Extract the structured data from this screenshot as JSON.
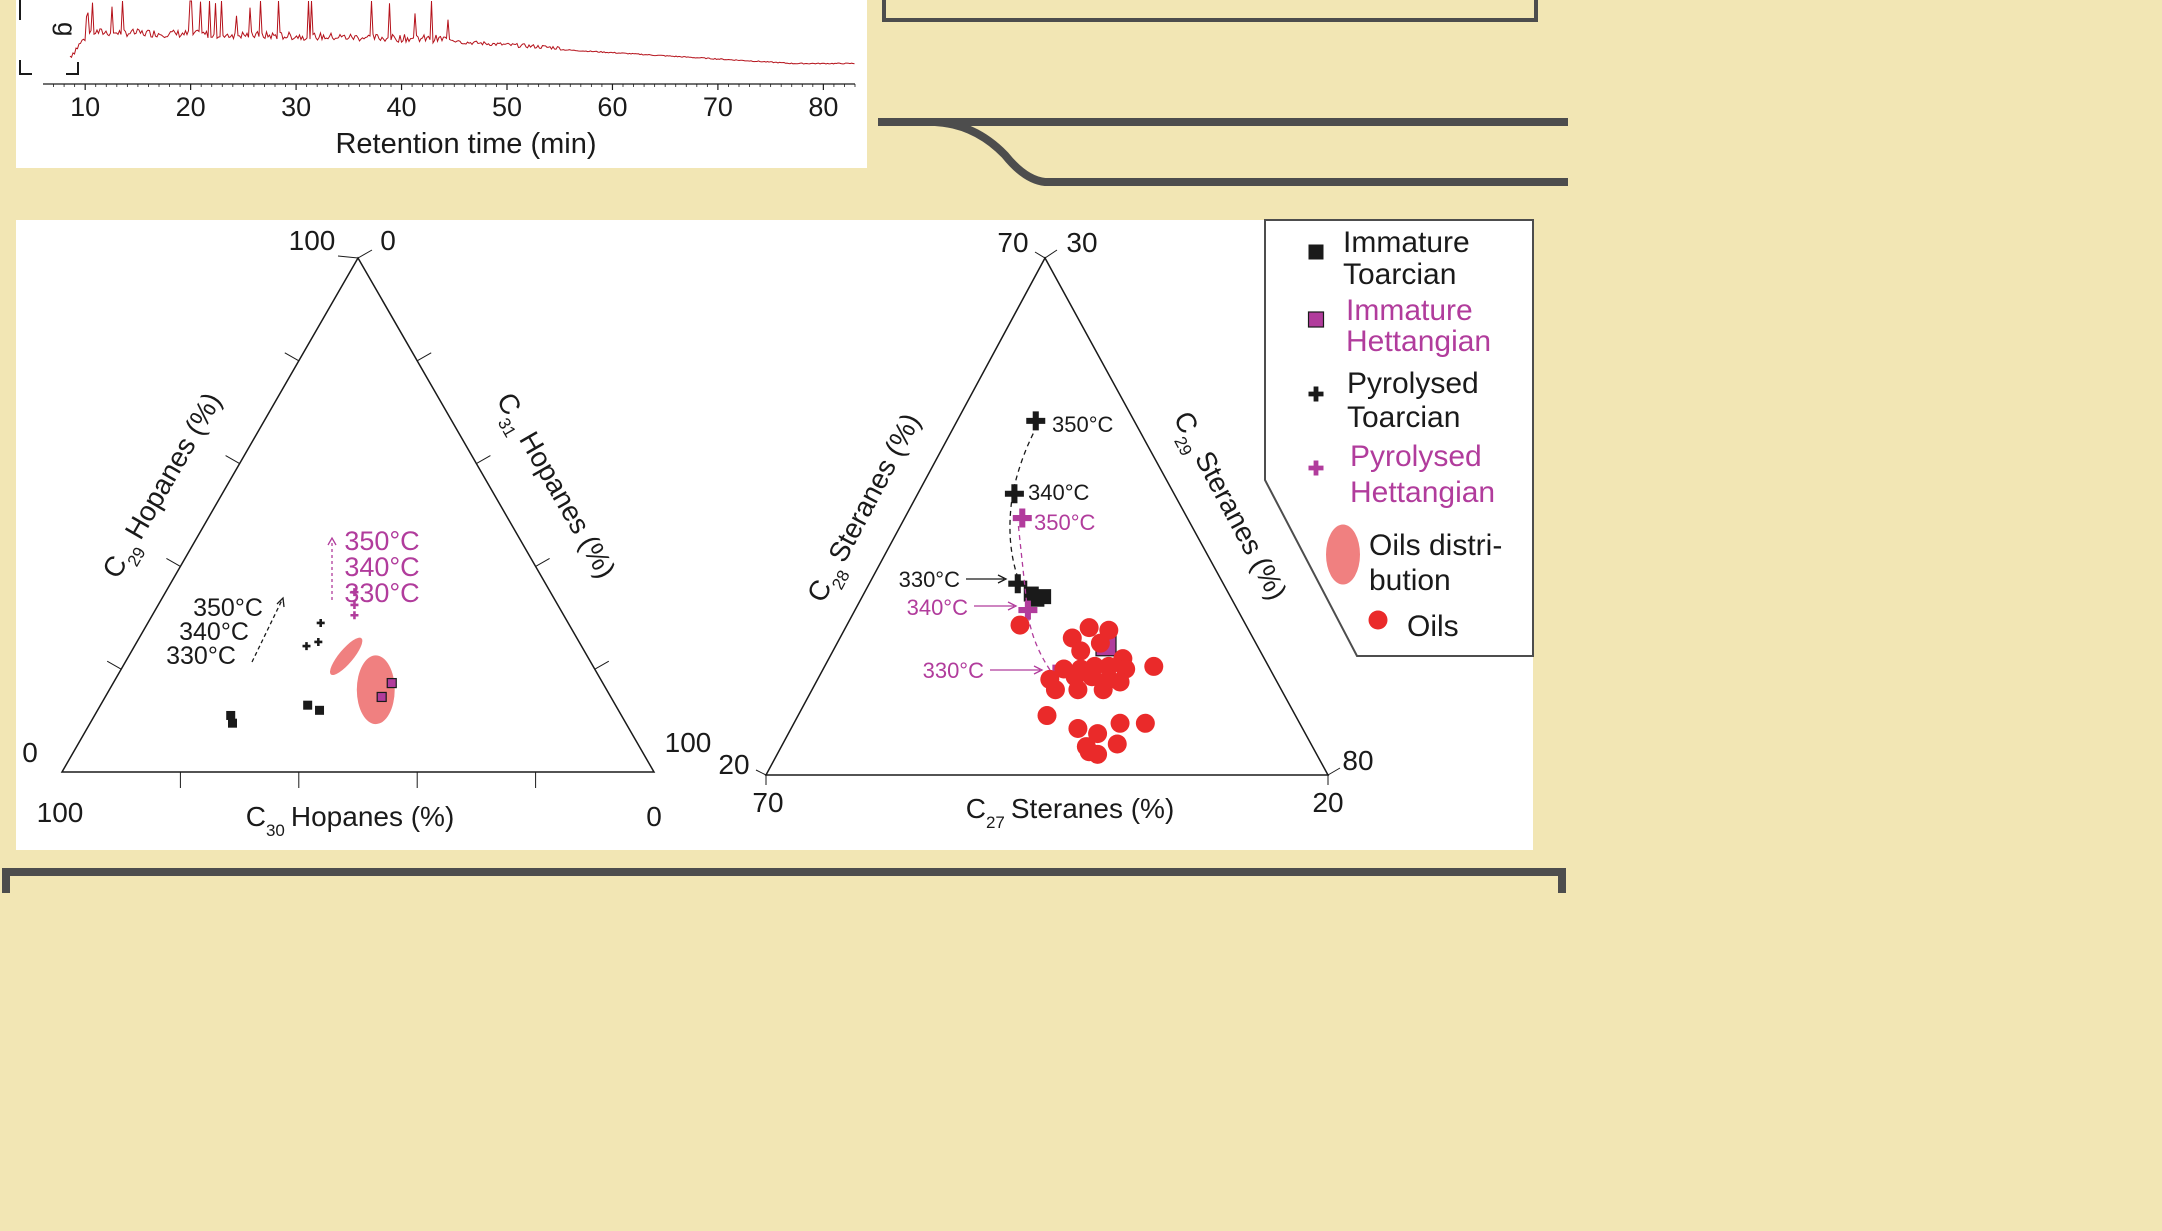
{
  "colors": {
    "background": "#f2e6b4",
    "panel": "#ffffff",
    "black": "#1a1a1a",
    "magenta": "#b13c9c",
    "oil_red": "#ea2a2a",
    "oil_ellipse": "#f08080",
    "chromatogram": "#b5121b",
    "frame": "#4d4d4d"
  },
  "chart_data": [
    {
      "type": "line",
      "xlabel": "Retention time (min)",
      "ylabel_fragment": "g",
      "x_ticks": [
        "10",
        "20",
        "30",
        "40",
        "50",
        "60",
        "70",
        "80"
      ],
      "xlim": [
        6,
        83
      ],
      "color": "chromatogram"
    },
    {
      "type": "ternary-scatter",
      "axis_bottom": {
        "label_main": "C",
        "label_sub": "30",
        "label_rest": "Hopanes (%)",
        "start": "100",
        "end": "0"
      },
      "axis_left": {
        "label_main": "C",
        "label_sub": "29",
        "label_rest": "Hopanes (%)",
        "bottom": "0",
        "top": "100"
      },
      "axis_right": {
        "label_main": "C",
        "label_sub": "31",
        "label_rest": "Hopanes (%)",
        "top": "0",
        "bottom": "100"
      },
      "series": [
        {
          "name": "Immature Toarcian",
          "marker": "square",
          "color": "black",
          "points": [
            [
              0.285,
              0.11
            ],
            [
              0.288,
              0.095
            ],
            [
              0.415,
              0.13
            ],
            [
              0.435,
              0.12
            ]
          ]
        },
        {
          "name": "Immature Hettangian",
          "marker": "square",
          "color": "magenta",
          "points": [
            [
              0.557,
              0.173
            ],
            [
              0.54,
              0.146
            ]
          ]
        },
        {
          "name": "Pyrolysed Toarcian",
          "marker": "plus",
          "color": "black",
          "points": [
            [
              0.437,
              0.29
            ],
            [
              0.413,
              0.245
            ],
            [
              0.433,
              0.253
            ]
          ]
        },
        {
          "name": "Pyrolysed Hettangian",
          "marker": "plus",
          "color": "magenta",
          "points": [
            [
              0.494,
              0.35
            ],
            [
              0.494,
              0.325
            ],
            [
              0.494,
              0.305
            ]
          ]
        }
      ],
      "oils_region": [
        {
          "cx": 0.48,
          "cy": 0.225,
          "rx": 0.04,
          "ry": 0.012,
          "rot": -50
        },
        {
          "cx": 0.53,
          "cy": 0.16,
          "rx": 0.032,
          "ry": 0.058,
          "rot": 0
        }
      ],
      "annotations_black": [
        "350°C",
        "340°C",
        "330°C"
      ],
      "annotations_magenta": [
        "350°C",
        "340°C",
        "330°C"
      ]
    },
    {
      "type": "ternary-scatter",
      "axis_bottom": {
        "label_main": "C",
        "label_sub": "27",
        "label_rest": "Steranes (%)",
        "start": "70",
        "end": "20"
      },
      "axis_left": {
        "label_main": "C",
        "label_sub": "28",
        "label_rest": "Steranes (%)",
        "bottom": "20",
        "top": "70"
      },
      "axis_right": {
        "label_main": "C",
        "label_sub": "29",
        "label_rest": "Steranes (%)",
        "top": "30",
        "bottom": "80"
      },
      "series": [
        {
          "name": "Immature Toarcian",
          "marker": "square",
          "color": "black",
          "points": [
            [
              0.472,
              0.35
            ],
            [
              0.482,
              0.34
            ],
            [
              0.494,
              0.345
            ]
          ]
        },
        {
          "name": "Immature Hettangian",
          "marker": "square",
          "color": "magenta",
          "points": [
            [
              0.605,
              0.25
            ]
          ]
        },
        {
          "name": "Pyrolysed Toarcian",
          "marker": "plus",
          "color": "black",
          "points": [
            [
              0.48,
              0.685
            ],
            [
              0.442,
              0.544
            ],
            [
              0.448,
              0.37
            ]
          ]
        },
        {
          "name": "Pyrolysed Hettangian",
          "marker": "plus",
          "color": "magenta",
          "points": [
            [
              0.456,
              0.497
            ],
            [
              0.466,
              0.319
            ],
            [
              0.515,
              0.195
            ]
          ]
        },
        {
          "name": "Oils",
          "marker": "circle",
          "color": "oil_red",
          "points": [
            [
              0.452,
              0.29
            ],
            [
              0.575,
              0.285
            ],
            [
              0.61,
              0.28
            ],
            [
              0.545,
              0.265
            ],
            [
              0.595,
              0.255
            ],
            [
              0.56,
              0.24
            ],
            [
              0.635,
              0.225
            ],
            [
              0.69,
              0.21
            ],
            [
              0.53,
              0.205
            ],
            [
              0.56,
              0.205
            ],
            [
              0.585,
              0.21
            ],
            [
              0.61,
              0.21
            ],
            [
              0.64,
              0.205
            ],
            [
              0.505,
              0.185
            ],
            [
              0.55,
              0.19
            ],
            [
              0.58,
              0.19
            ],
            [
              0.61,
              0.185
            ],
            [
              0.63,
              0.18
            ],
            [
              0.515,
              0.165
            ],
            [
              0.6,
              0.165
            ],
            [
              0.555,
              0.165
            ],
            [
              0.5,
              0.115
            ],
            [
              0.63,
              0.1
            ],
            [
              0.675,
              0.1
            ],
            [
              0.555,
              0.09
            ],
            [
              0.59,
              0.08
            ],
            [
              0.625,
              0.06
            ],
            [
              0.57,
              0.055
            ],
            [
              0.575,
              0.045
            ],
            [
              0.59,
              0.04
            ]
          ]
        }
      ],
      "annotations_black": [
        "350°C",
        "340°C",
        "330°C"
      ],
      "annotations_magenta": [
        "350°C",
        "340°C",
        "330°C"
      ]
    }
  ],
  "legend": {
    "items": [
      {
        "line1": "Immature",
        "line2": "Toarcian",
        "marker": "square",
        "color": "black"
      },
      {
        "line1": "Immature",
        "line2": "Hettangian",
        "marker": "square",
        "color": "magenta"
      },
      {
        "line1": "Pyrolysed",
        "line2": "Toarcian",
        "marker": "plus",
        "color": "black"
      },
      {
        "line1": "Pyrolysed",
        "line2": "Hettangian",
        "marker": "plus",
        "color": "magenta"
      },
      {
        "line1": "Oils distri-",
        "line2": "bution",
        "marker": "ellipse",
        "color": "oil_ellipse"
      },
      {
        "line1": "Oils",
        "line2": "",
        "marker": "circle",
        "color": "oil_red"
      }
    ]
  }
}
